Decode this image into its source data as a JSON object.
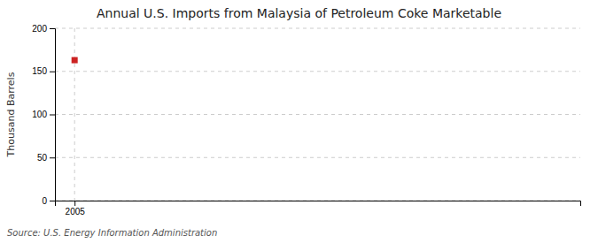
{
  "chart_data": {
    "type": "scatter",
    "title": "Annual U.S. Imports from Malaysia of Petroleum Coke Marketable",
    "ylabel": "Thousand Barrels",
    "source": "Source: U.S. Energy Information Administration",
    "x": [
      2005
    ],
    "values": [
      163
    ],
    "color": "#cc2222",
    "marker": "square",
    "xlim": [
      2004.3,
      2023
    ],
    "xticks": [
      2005
    ],
    "ylim": [
      0,
      200
    ],
    "yticks": [
      0,
      50,
      100,
      150,
      200
    ],
    "grid": true
  }
}
